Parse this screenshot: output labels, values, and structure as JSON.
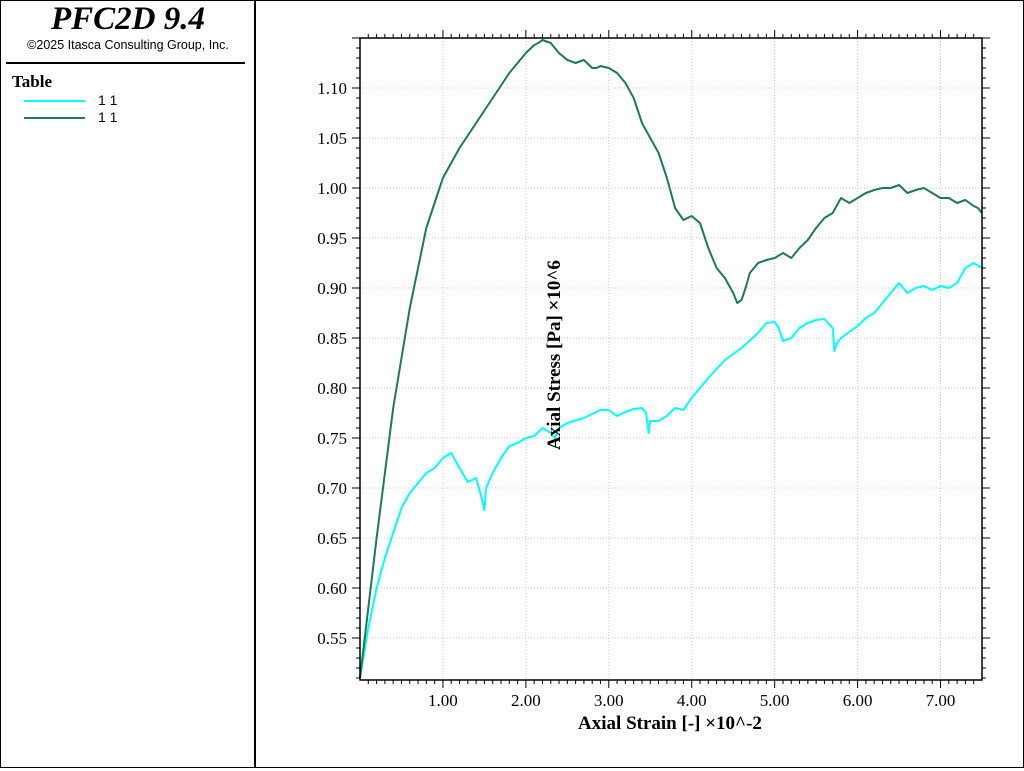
{
  "app": {
    "title": "PFC2D 9.4",
    "copyright": "©2025 Itasca Consulting Group, Inc."
  },
  "legend": {
    "heading": "Table",
    "items": [
      {
        "label": "1 1",
        "color": "#00ffff"
      },
      {
        "label": "1 1",
        "color": "#1e7a50"
      }
    ]
  },
  "chart_data": {
    "type": "line",
    "xlabel": "Axial Strain [-] ×10^-2",
    "ylabel": "Axial Stress [Pa] ×10^6",
    "xlim": [
      0.0,
      7.5
    ],
    "ylim": [
      0.508,
      1.15
    ],
    "x_ticks": [
      1.0,
      2.0,
      3.0,
      4.0,
      5.0,
      6.0,
      7.0
    ],
    "x_tick_labels": [
      "1.00",
      "2.00",
      "3.00",
      "4.00",
      "5.00",
      "6.00",
      "7.00"
    ],
    "y_ticks": [
      0.55,
      0.6,
      0.65,
      0.7,
      0.75,
      0.8,
      0.85,
      0.9,
      0.95,
      1.0,
      1.05,
      1.1
    ],
    "y_tick_labels": [
      "0.55",
      "0.60",
      "0.65",
      "0.70",
      "0.75",
      "0.80",
      "0.85",
      "0.90",
      "0.95",
      "1.00",
      "1.05",
      "1.10"
    ],
    "grid": true,
    "series": [
      {
        "color": "#00ffff",
        "x": [
          0.0,
          0.1,
          0.2,
          0.3,
          0.4,
          0.5,
          0.6,
          0.7,
          0.8,
          0.9,
          1.0,
          1.1,
          1.2,
          1.3,
          1.35,
          1.4,
          1.45,
          1.5,
          1.52,
          1.6,
          1.7,
          1.8,
          1.9,
          2.0,
          2.1,
          2.2,
          2.3,
          2.35,
          2.4,
          2.5,
          2.7,
          2.9,
          3.0,
          3.1,
          3.2,
          3.3,
          3.4,
          3.45,
          3.48,
          3.5,
          3.6,
          3.7,
          3.8,
          3.9,
          4.0,
          4.2,
          4.4,
          4.6,
          4.8,
          4.9,
          5.0,
          5.05,
          5.1,
          5.2,
          5.3,
          5.4,
          5.5,
          5.6,
          5.7,
          5.72,
          5.75,
          5.8,
          6.0,
          6.1,
          6.2,
          6.3,
          6.4,
          6.5,
          6.6,
          6.7,
          6.8,
          6.9,
          7.0,
          7.1,
          7.2,
          7.3,
          7.4,
          7.5
        ],
        "y": [
          0.51,
          0.56,
          0.6,
          0.63,
          0.655,
          0.68,
          0.695,
          0.705,
          0.715,
          0.72,
          0.73,
          0.735,
          0.72,
          0.706,
          0.708,
          0.71,
          0.695,
          0.678,
          0.7,
          0.715,
          0.73,
          0.742,
          0.745,
          0.75,
          0.752,
          0.76,
          0.755,
          0.75,
          0.76,
          0.765,
          0.77,
          0.778,
          0.778,
          0.772,
          0.776,
          0.779,
          0.78,
          0.775,
          0.755,
          0.767,
          0.767,
          0.772,
          0.78,
          0.778,
          0.79,
          0.81,
          0.828,
          0.84,
          0.855,
          0.865,
          0.866,
          0.86,
          0.847,
          0.85,
          0.86,
          0.865,
          0.868,
          0.869,
          0.86,
          0.837,
          0.845,
          0.85,
          0.862,
          0.87,
          0.875,
          0.885,
          0.895,
          0.905,
          0.895,
          0.9,
          0.902,
          0.898,
          0.902,
          0.9,
          0.905,
          0.92,
          0.925,
          0.92
        ]
      },
      {
        "color": "#1e7a50",
        "x": [
          0.0,
          0.2,
          0.4,
          0.6,
          0.8,
          1.0,
          1.2,
          1.4,
          1.6,
          1.8,
          2.0,
          2.1,
          2.15,
          2.2,
          2.3,
          2.4,
          2.5,
          2.6,
          2.7,
          2.8,
          2.85,
          2.9,
          3.0,
          3.1,
          3.2,
          3.3,
          3.4,
          3.5,
          3.6,
          3.7,
          3.8,
          3.9,
          4.0,
          4.1,
          4.2,
          4.3,
          4.4,
          4.5,
          4.55,
          4.6,
          4.65,
          4.7,
          4.8,
          4.9,
          5.0,
          5.1,
          5.2,
          5.3,
          5.4,
          5.5,
          5.6,
          5.7,
          5.8,
          5.9,
          6.0,
          6.1,
          6.2,
          6.3,
          6.4,
          6.5,
          6.6,
          6.7,
          6.8,
          6.9,
          7.0,
          7.1,
          7.2,
          7.3,
          7.4,
          7.45,
          7.5
        ],
        "y": [
          0.51,
          0.65,
          0.78,
          0.88,
          0.96,
          1.01,
          1.04,
          1.065,
          1.09,
          1.115,
          1.135,
          1.143,
          1.145,
          1.148,
          1.145,
          1.135,
          1.128,
          1.125,
          1.128,
          1.12,
          1.12,
          1.122,
          1.12,
          1.115,
          1.105,
          1.09,
          1.065,
          1.05,
          1.035,
          1.01,
          0.98,
          0.968,
          0.972,
          0.965,
          0.94,
          0.92,
          0.91,
          0.895,
          0.885,
          0.888,
          0.9,
          0.915,
          0.925,
          0.928,
          0.93,
          0.935,
          0.93,
          0.94,
          0.948,
          0.96,
          0.97,
          0.975,
          0.99,
          0.985,
          0.99,
          0.995,
          0.998,
          1.0,
          1.0,
          1.003,
          0.995,
          0.998,
          1.0,
          0.995,
          0.99,
          0.99,
          0.985,
          0.988,
          0.982,
          0.98,
          0.975
        ]
      }
    ]
  }
}
